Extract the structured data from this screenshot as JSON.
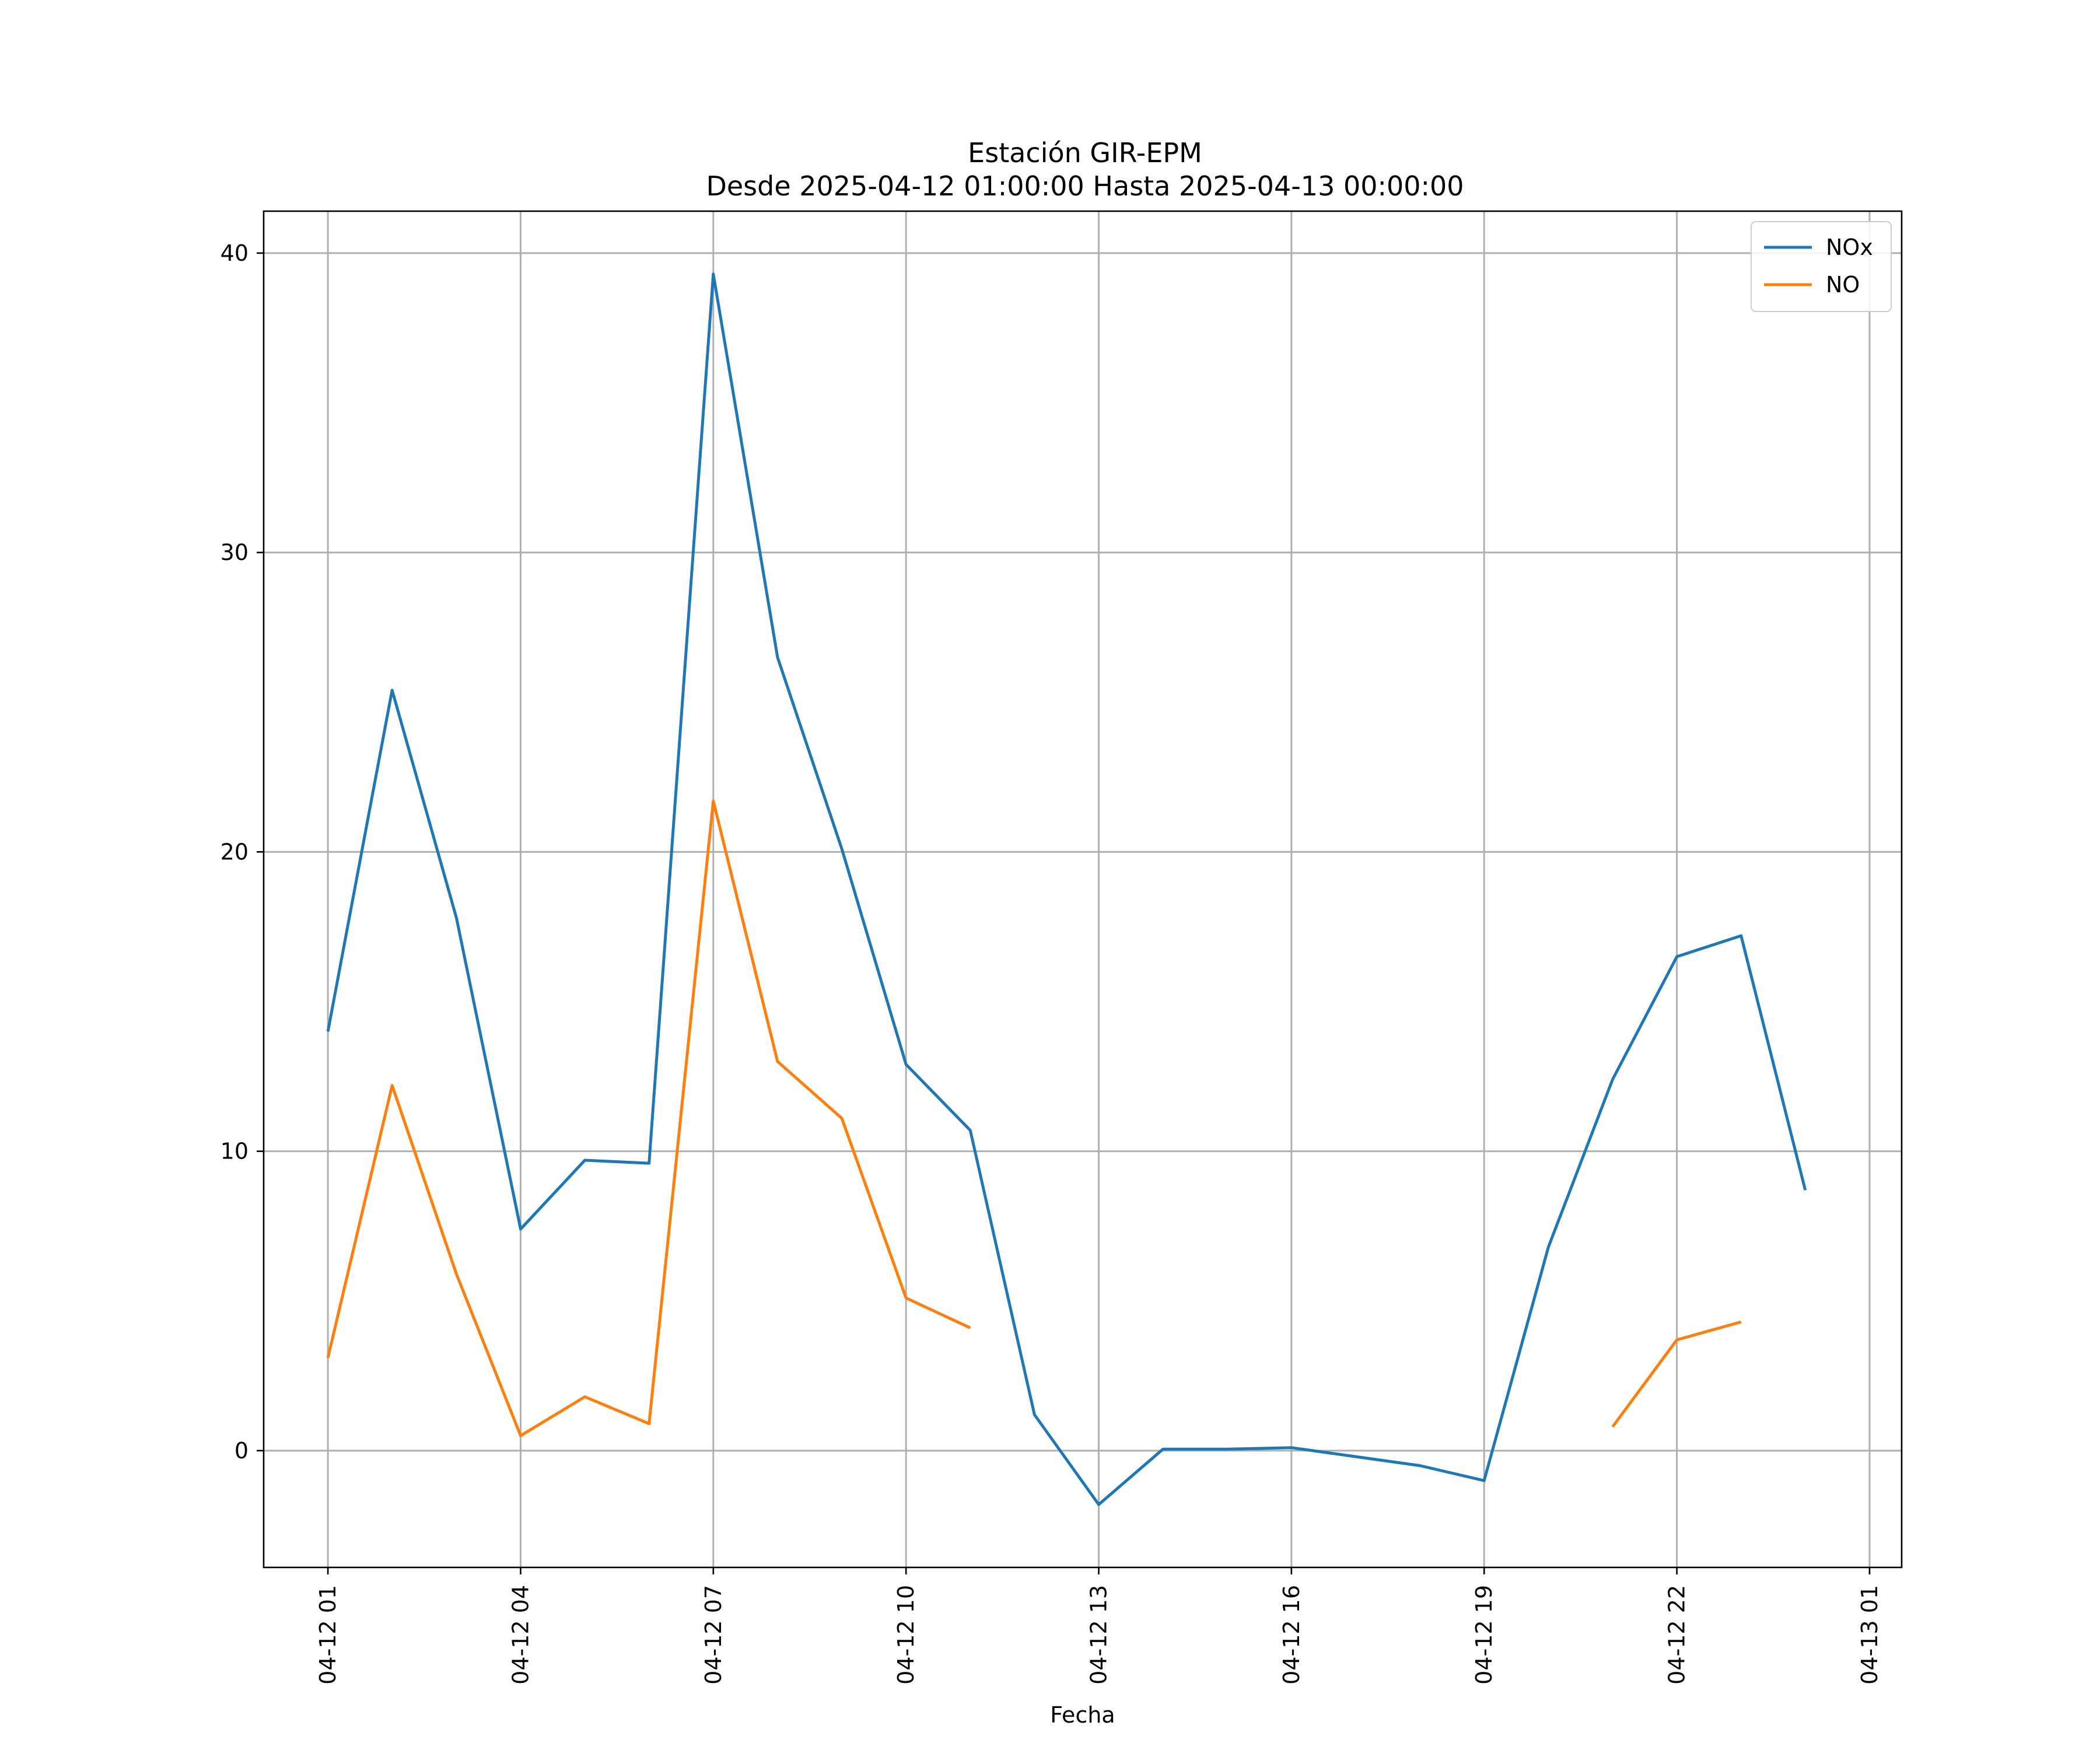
{
  "chart_data": {
    "type": "line",
    "title": "Estación GIR-EPM",
    "subtitle": "Desde 2025-04-12 01:00:00 Hasta 2025-04-13 00:00:00",
    "xlabel": "Fecha",
    "ylabel": "",
    "x_type": "datetime",
    "xlim": [
      "2025-04-12 00:00",
      "2025-04-13 01:30"
    ],
    "ylim": [
      -3.9,
      41.4
    ],
    "x_ticks": [
      "2025-04-12 01:00",
      "2025-04-12 04:00",
      "2025-04-12 07:00",
      "2025-04-12 10:00",
      "2025-04-12 13:00",
      "2025-04-12 16:00",
      "2025-04-12 19:00",
      "2025-04-12 22:00",
      "2025-04-13 01:00"
    ],
    "x_tick_labels": [
      "04-12 01",
      "04-12 04",
      "04-12 07",
      "04-12 10",
      "04-12 13",
      "04-12 16",
      "04-12 19",
      "04-12 22",
      "04-13 01"
    ],
    "y_ticks": [
      0,
      10,
      20,
      30,
      40
    ],
    "y_tick_labels": [
      "0",
      "10",
      "20",
      "30",
      "40"
    ],
    "grid": true,
    "legend_position": "top-right",
    "x": [
      "2025-04-12 01:00",
      "2025-04-12 02:00",
      "2025-04-12 03:00",
      "2025-04-12 04:00",
      "2025-04-12 05:00",
      "2025-04-12 06:00",
      "2025-04-12 07:00",
      "2025-04-12 08:00",
      "2025-04-12 09:00",
      "2025-04-12 10:00",
      "2025-04-12 11:00",
      "2025-04-12 12:00",
      "2025-04-12 13:00",
      "2025-04-12 14:00",
      "2025-04-12 15:00",
      "2025-04-12 16:00",
      "2025-04-12 17:00",
      "2025-04-12 18:00",
      "2025-04-12 19:00",
      "2025-04-12 20:00",
      "2025-04-12 21:00",
      "2025-04-12 22:00",
      "2025-04-12 23:00",
      "2025-04-13 00:00"
    ],
    "series": [
      {
        "name": "NOx",
        "color": "#1f77b4",
        "values": [
          14.0,
          25.4,
          17.8,
          7.4,
          9.7,
          9.6,
          39.3,
          26.5,
          20.1,
          12.9,
          10.7,
          1.2,
          -1.8,
          0.05,
          0.05,
          0.1,
          -0.2,
          -0.5,
          -1.0,
          6.8,
          12.4,
          16.5,
          17.2,
          8.7
        ]
      },
      {
        "name": "NO",
        "color": "#ff7f0e",
        "values": [
          3.1,
          12.2,
          5.9,
          0.5,
          1.8,
          0.9,
          21.7,
          13.0,
          11.1,
          5.1,
          4.1,
          null,
          null,
          null,
          null,
          null,
          null,
          null,
          null,
          null,
          0.8,
          3.7,
          4.3,
          null
        ]
      }
    ]
  }
}
